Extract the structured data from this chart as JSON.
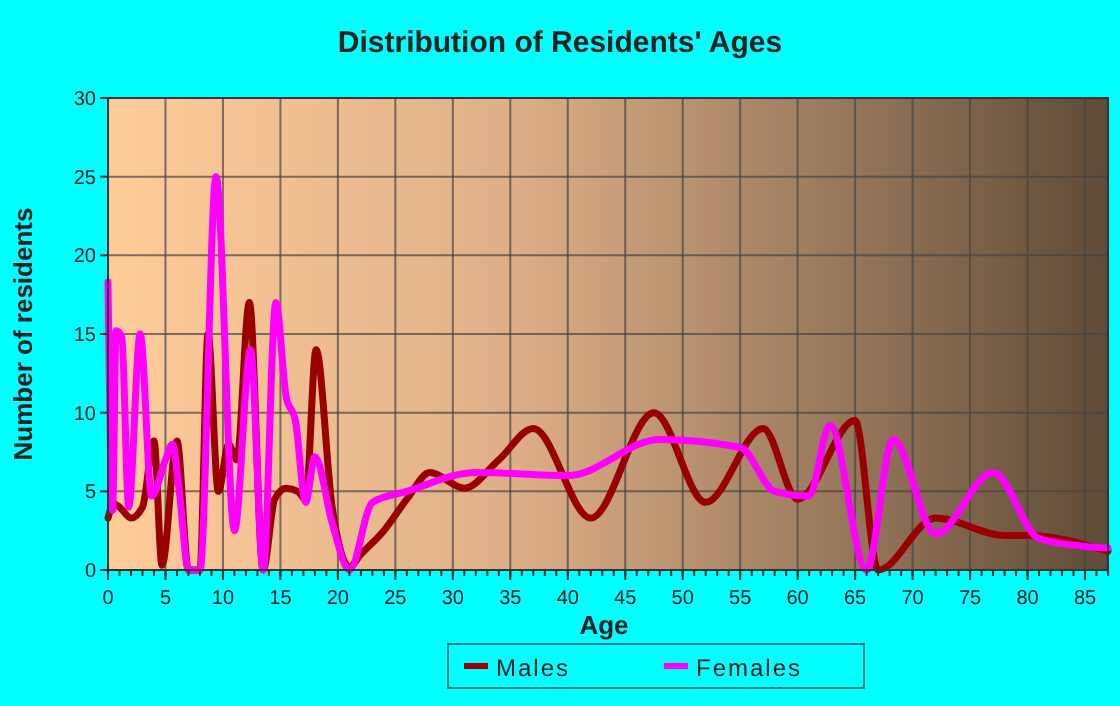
{
  "chart_data": {
    "type": "line",
    "title": "Distribution of Residents' Ages",
    "xlabel": "Age",
    "ylabel": "Number of residents",
    "xlim": [
      0,
      87
    ],
    "xticks": [
      0,
      5,
      10,
      15,
      20,
      25,
      30,
      35,
      40,
      45,
      50,
      55,
      60,
      65,
      70,
      75,
      80,
      85
    ],
    "ylim": [
      0,
      30
    ],
    "yticks": [
      0,
      5,
      10,
      15,
      20,
      25,
      30
    ],
    "grid": true,
    "legend": "bottom",
    "line_style": "solid",
    "series": [
      {
        "name": "Males",
        "color": "#990000",
        "x": [
          0,
          0.5,
          1,
          2,
          3,
          4,
          4.7,
          6,
          7,
          8,
          8.7,
          9.6,
          10.5,
          11.2,
          12.3,
          13.5,
          14.5,
          15.5,
          16.5,
          17.2,
          18.1,
          19.5,
          21,
          22,
          24,
          26,
          28,
          31,
          34,
          37,
          42,
          47.5,
          52,
          57,
          60,
          65,
          67,
          72,
          78,
          80,
          87
        ],
        "values": [
          3.3,
          4.2,
          4,
          3.3,
          4,
          8.2,
          0.3,
          8.2,
          0,
          0,
          15,
          5,
          8,
          7,
          17,
          0,
          4.5,
          5.2,
          5,
          4.5,
          14,
          4,
          0.2,
          1,
          2.5,
          4.5,
          6.2,
          5.2,
          7,
          9,
          3.3,
          10,
          4.3,
          9,
          4.5,
          9.5,
          0,
          3.3,
          2.2,
          2.2,
          1.2
        ]
      },
      {
        "name": "Females",
        "color": "#ff00ff",
        "x": [
          0,
          0.4,
          0.7,
          1.2,
          1.8,
          2.8,
          3.8,
          5,
          5.6,
          6.2,
          7,
          8,
          9.4,
          11,
          12.4,
          13.5,
          14.6,
          15.5,
          16.3,
          17.2,
          18,
          19.5,
          21,
          23,
          26,
          32,
          40,
          48,
          55,
          58,
          61,
          62.8,
          66,
          68.3,
          72,
          77,
          81,
          85,
          87
        ],
        "values": [
          18.3,
          3.8,
          15.2,
          14.8,
          4,
          15,
          4.7,
          7,
          8,
          5,
          0,
          0,
          25,
          2.5,
          14,
          0,
          17,
          11,
          9.5,
          4.3,
          7.2,
          3,
          0,
          4.3,
          5,
          6.2,
          6,
          8.3,
          7.8,
          5,
          4.7,
          9.2,
          0,
          8.3,
          2.3,
          6.2,
          2,
          1.5,
          1.4
        ]
      }
    ]
  }
}
